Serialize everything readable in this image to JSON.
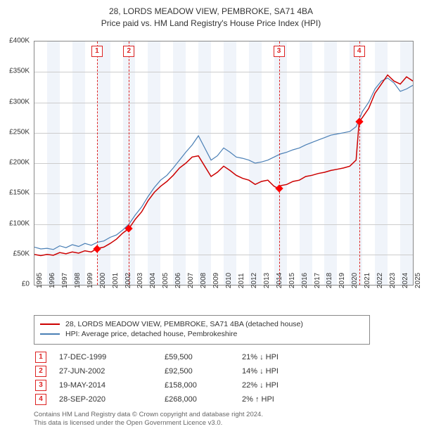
{
  "title_line1": "28, LORDS MEADOW VIEW, PEMBROKE, SA71 4BA",
  "title_line2": "Price paid vs. HM Land Registry's House Price Index (HPI)",
  "chart": {
    "type": "line",
    "background_color": "#ffffff",
    "band_color": "#f0f4fa",
    "grid_color": "#cccccc",
    "axis_color": "#888888",
    "xyears": [
      1995,
      1996,
      1997,
      1998,
      1999,
      2000,
      2001,
      2002,
      2003,
      2004,
      2005,
      2006,
      2007,
      2008,
      2009,
      2010,
      2011,
      2012,
      2013,
      2014,
      2015,
      2016,
      2017,
      2018,
      2019,
      2020,
      2021,
      2022,
      2023,
      2024,
      2025
    ],
    "x_label_fontsize": 10,
    "ylim": [
      0,
      400000
    ],
    "ytick_step": 50000,
    "yticks_labels": [
      "£0",
      "£50K",
      "£100K",
      "£150K",
      "£200K",
      "£250K",
      "£300K",
      "£350K",
      "£400K"
    ],
    "y_label_fontsize": 10,
    "series": [
      {
        "name": "hpi",
        "color": "#4a7fb5",
        "width": 1.2,
        "legend": "HPI: Average price, detached house, Pembrokeshire",
        "points": [
          [
            1995.0,
            62000
          ],
          [
            1995.5,
            59000
          ],
          [
            1996.0,
            60000
          ],
          [
            1996.5,
            58000
          ],
          [
            1997.0,
            64000
          ],
          [
            1997.5,
            61000
          ],
          [
            1998.0,
            66000
          ],
          [
            1998.5,
            63000
          ],
          [
            1999.0,
            68000
          ],
          [
            1999.5,
            65000
          ],
          [
            2000.0,
            70000
          ],
          [
            2000.5,
            72000
          ],
          [
            2001.0,
            78000
          ],
          [
            2001.5,
            82000
          ],
          [
            2002.0,
            90000
          ],
          [
            2002.5,
            100000
          ],
          [
            2003.0,
            115000
          ],
          [
            2003.5,
            128000
          ],
          [
            2004.0,
            145000
          ],
          [
            2004.5,
            160000
          ],
          [
            2005.0,
            172000
          ],
          [
            2005.5,
            180000
          ],
          [
            2006.0,
            192000
          ],
          [
            2006.5,
            205000
          ],
          [
            2007.0,
            218000
          ],
          [
            2007.5,
            230000
          ],
          [
            2008.0,
            245000
          ],
          [
            2008.5,
            225000
          ],
          [
            2009.0,
            205000
          ],
          [
            2009.5,
            212000
          ],
          [
            2010.0,
            225000
          ],
          [
            2010.5,
            218000
          ],
          [
            2011.0,
            210000
          ],
          [
            2011.5,
            208000
          ],
          [
            2012.0,
            205000
          ],
          [
            2012.5,
            200000
          ],
          [
            2013.0,
            202000
          ],
          [
            2013.5,
            205000
          ],
          [
            2014.0,
            210000
          ],
          [
            2014.5,
            215000
          ],
          [
            2015.0,
            218000
          ],
          [
            2015.5,
            222000
          ],
          [
            2016.0,
            225000
          ],
          [
            2016.5,
            230000
          ],
          [
            2017.0,
            234000
          ],
          [
            2017.5,
            238000
          ],
          [
            2018.0,
            242000
          ],
          [
            2018.5,
            246000
          ],
          [
            2019.0,
            248000
          ],
          [
            2019.5,
            250000
          ],
          [
            2020.0,
            252000
          ],
          [
            2020.5,
            260000
          ],
          [
            2021.0,
            285000
          ],
          [
            2021.5,
            300000
          ],
          [
            2022.0,
            322000
          ],
          [
            2022.5,
            335000
          ],
          [
            2023.0,
            340000
          ],
          [
            2023.5,
            332000
          ],
          [
            2024.0,
            318000
          ],
          [
            2024.5,
            322000
          ],
          [
            2025.0,
            328000
          ]
        ]
      },
      {
        "name": "property",
        "color": "#cc0000",
        "width": 1.5,
        "legend": "28, LORDS MEADOW VIEW, PEMBROKE, SA71 4BA (detached house)",
        "points": [
          [
            1995.0,
            50000
          ],
          [
            1995.5,
            48000
          ],
          [
            1996.0,
            50000
          ],
          [
            1996.5,
            48500
          ],
          [
            1997.0,
            53000
          ],
          [
            1997.5,
            51000
          ],
          [
            1998.0,
            54000
          ],
          [
            1998.5,
            52000
          ],
          [
            1999.0,
            56000
          ],
          [
            1999.5,
            54000
          ],
          [
            1999.96,
            59500
          ],
          [
            2000.5,
            62000
          ],
          [
            2001.0,
            68000
          ],
          [
            2001.5,
            75000
          ],
          [
            2002.0,
            85000
          ],
          [
            2002.49,
            92500
          ],
          [
            2003.0,
            108000
          ],
          [
            2003.5,
            120000
          ],
          [
            2004.0,
            138000
          ],
          [
            2004.5,
            152000
          ],
          [
            2005.0,
            162000
          ],
          [
            2005.5,
            170000
          ],
          [
            2006.0,
            180000
          ],
          [
            2006.5,
            192000
          ],
          [
            2007.0,
            200000
          ],
          [
            2007.5,
            210000
          ],
          [
            2008.0,
            212000
          ],
          [
            2008.5,
            195000
          ],
          [
            2009.0,
            178000
          ],
          [
            2009.5,
            185000
          ],
          [
            2010.0,
            195000
          ],
          [
            2010.5,
            188000
          ],
          [
            2011.0,
            180000
          ],
          [
            2011.5,
            175000
          ],
          [
            2012.0,
            172000
          ],
          [
            2012.5,
            165000
          ],
          [
            2013.0,
            170000
          ],
          [
            2013.5,
            172000
          ],
          [
            2014.0,
            162000
          ],
          [
            2014.38,
            158000
          ],
          [
            2014.5,
            163000
          ],
          [
            2015.0,
            165000
          ],
          [
            2015.5,
            170000
          ],
          [
            2016.0,
            172000
          ],
          [
            2016.5,
            178000
          ],
          [
            2017.0,
            180000
          ],
          [
            2017.5,
            183000
          ],
          [
            2018.0,
            185000
          ],
          [
            2018.5,
            188000
          ],
          [
            2019.0,
            190000
          ],
          [
            2019.5,
            192000
          ],
          [
            2020.0,
            195000
          ],
          [
            2020.5,
            205000
          ],
          [
            2020.74,
            268000
          ],
          [
            2021.0,
            275000
          ],
          [
            2021.5,
            290000
          ],
          [
            2022.0,
            315000
          ],
          [
            2022.5,
            330000
          ],
          [
            2023.0,
            345000
          ],
          [
            2023.5,
            335000
          ],
          [
            2024.0,
            330000
          ],
          [
            2024.5,
            342000
          ],
          [
            2025.0,
            335000
          ]
        ]
      }
    ],
    "event_line_color": "#d22",
    "event_markers": [
      {
        "n": "1",
        "year": 1999.96,
        "price": 59500
      },
      {
        "n": "2",
        "year": 2002.49,
        "price": 92500
      },
      {
        "n": "3",
        "year": 2014.38,
        "price": 158000
      },
      {
        "n": "4",
        "year": 2020.74,
        "price": 268000
      }
    ],
    "marker_color": "#ff0000"
  },
  "legend_items": [
    {
      "color": "#cc0000",
      "label": "28, LORDS MEADOW VIEW, PEMBROKE, SA71 4BA (detached house)"
    },
    {
      "color": "#4a7fb5",
      "label": "HPI: Average price, detached house, Pembrokeshire"
    }
  ],
  "transactions": [
    {
      "n": "1",
      "date": "17-DEC-1999",
      "price": "£59,500",
      "pct": "21% ↓ HPI"
    },
    {
      "n": "2",
      "date": "27-JUN-2002",
      "price": "£92,500",
      "pct": "14% ↓ HPI"
    },
    {
      "n": "3",
      "date": "19-MAY-2014",
      "price": "£158,000",
      "pct": "22% ↓ HPI"
    },
    {
      "n": "4",
      "date": "28-SEP-2020",
      "price": "£268,000",
      "pct": "2% ↑ HPI"
    }
  ],
  "footer_line1": "Contains HM Land Registry data © Crown copyright and database right 2024.",
  "footer_line2": "This data is licensed under the Open Government Licence v3.0."
}
